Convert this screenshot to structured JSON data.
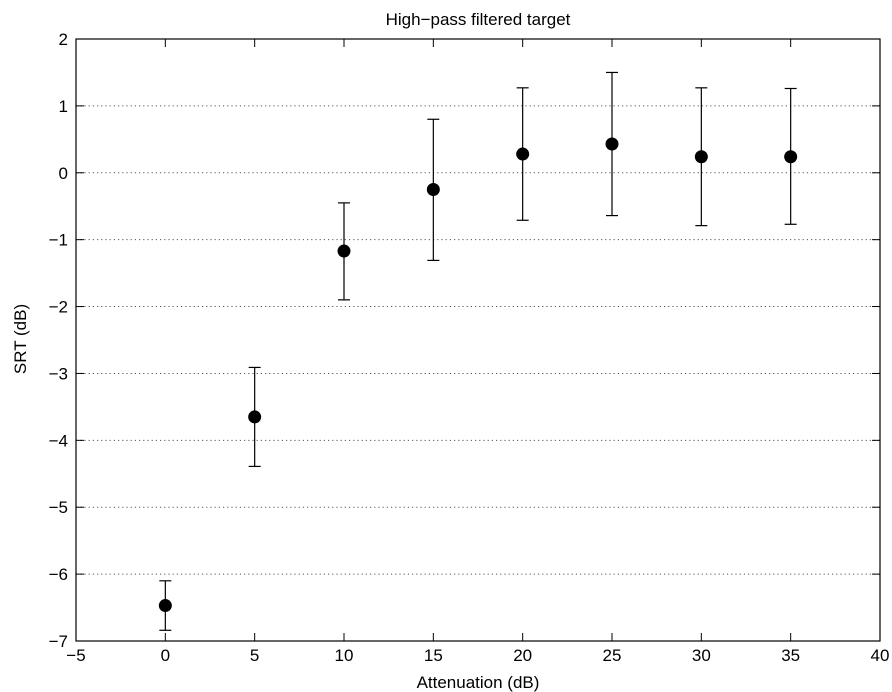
{
  "chart_data": {
    "type": "scatter",
    "title": "High−pass filtered target",
    "xlabel": "Attenuation (dB)",
    "ylabel": "SRT (dB)",
    "xlim": [
      -5,
      40
    ],
    "ylim": [
      -7,
      2
    ],
    "xticks": [
      -5,
      0,
      5,
      10,
      15,
      20,
      25,
      30,
      35,
      40
    ],
    "yticks": [
      -7,
      -6,
      -5,
      -4,
      -3,
      -2,
      -1,
      0,
      1,
      2
    ],
    "xtick_labels": [
      "−5",
      "0",
      "5",
      "10",
      "15",
      "20",
      "25",
      "30",
      "35",
      "40"
    ],
    "ytick_labels": [
      "−7",
      "−6",
      "−5",
      "−4",
      "−3",
      "−2",
      "−1",
      "0",
      "1",
      "2"
    ],
    "grid": "horizontal dotted",
    "marker_color": "#000000",
    "points": [
      {
        "x": 0,
        "y": -6.47,
        "lower": -6.84,
        "upper": -6.1
      },
      {
        "x": 5,
        "y": -3.65,
        "lower": -4.39,
        "upper": -2.91
      },
      {
        "x": 10,
        "y": -1.17,
        "lower": -1.9,
        "upper": -0.45
      },
      {
        "x": 15,
        "y": -0.25,
        "lower": -1.31,
        "upper": 0.8
      },
      {
        "x": 20,
        "y": 0.28,
        "lower": -0.71,
        "upper": 1.27
      },
      {
        "x": 25,
        "y": 0.43,
        "lower": -0.64,
        "upper": 1.5
      },
      {
        "x": 30,
        "y": 0.24,
        "lower": -0.79,
        "upper": 1.27
      },
      {
        "x": 35,
        "y": 0.24,
        "lower": -0.77,
        "upper": 1.26
      }
    ]
  }
}
